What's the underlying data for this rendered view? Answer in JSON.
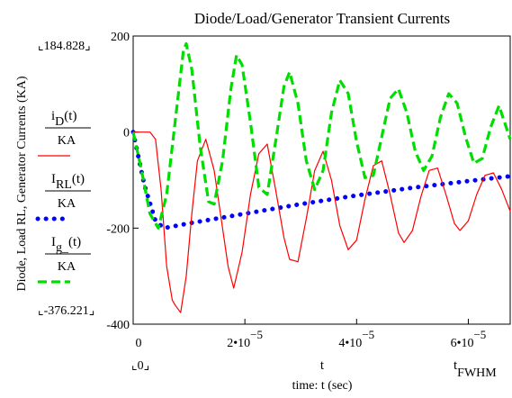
{
  "chart_data": {
    "type": "line",
    "title": "Diode/Load/Generator Transient Currents",
    "ylabel": "Diode, Load RL, Generator Currents (KA)",
    "xlabel": "time: t (sec)",
    "x_axis_marker": "t",
    "xlim": [
      0,
      6.75e-05
    ],
    "ylim": [
      -400,
      200
    ],
    "y_ticks": [
      {
        "value": 200,
        "label": "200"
      },
      {
        "value": 0,
        "label": "0"
      },
      {
        "value": -200,
        "label": "-200"
      },
      {
        "value": -400,
        "label": "-400"
      }
    ],
    "x_ticks": [
      {
        "value": 0,
        "mant": "0",
        "exp": ""
      },
      {
        "value": 2e-05,
        "mant": "2•10",
        "exp": "−5"
      },
      {
        "value": 4e-05,
        "mant": "4•10",
        "exp": "−5"
      },
      {
        "value": 6e-05,
        "mant": "6•10",
        "exp": "−5"
      }
    ],
    "range_labels": {
      "y_max": "184.828",
      "y_min": "-376.221",
      "x_min": "0",
      "x_max_base": "t",
      "x_max_sub": "FWHM"
    },
    "series": [
      {
        "key": "iD",
        "legend_top": "i",
        "legend_sub": "D",
        "legend_arg": "(t)",
        "legend_den": "KA",
        "color": "#ff0000",
        "style": "solid",
        "points": [
          [
            0,
            0
          ],
          [
            3e-06,
            0
          ],
          [
            4e-06,
            -15
          ],
          [
            5e-06,
            -120
          ],
          [
            6e-06,
            -280
          ],
          [
            7e-06,
            -350
          ],
          [
            7.5e-06,
            -360
          ],
          [
            8.5e-06,
            -376
          ],
          [
            9.5e-06,
            -300
          ],
          [
            1.05e-05,
            -170
          ],
          [
            1.15e-05,
            -60
          ],
          [
            1.3e-05,
            -15
          ],
          [
            1.45e-05,
            -80
          ],
          [
            1.6e-05,
            -200
          ],
          [
            1.7e-05,
            -280
          ],
          [
            1.8e-05,
            -325
          ],
          [
            1.95e-05,
            -250
          ],
          [
            2.1e-05,
            -130
          ],
          [
            2.25e-05,
            -45
          ],
          [
            2.4e-05,
            -25
          ],
          [
            2.55e-05,
            -120
          ],
          [
            2.7e-05,
            -220
          ],
          [
            2.8e-05,
            -265
          ],
          [
            2.95e-05,
            -270
          ],
          [
            3.1e-05,
            -180
          ],
          [
            3.25e-05,
            -80
          ],
          [
            3.4e-05,
            -40
          ],
          [
            3.55e-05,
            -100
          ],
          [
            3.7e-05,
            -195
          ],
          [
            3.85e-05,
            -245
          ],
          [
            4e-05,
            -225
          ],
          [
            4.15e-05,
            -140
          ],
          [
            4.3e-05,
            -70
          ],
          [
            4.45e-05,
            -60
          ],
          [
            4.6e-05,
            -130
          ],
          [
            4.75e-05,
            -210
          ],
          [
            4.85e-05,
            -230
          ],
          [
            5e-05,
            -205
          ],
          [
            5.15e-05,
            -135
          ],
          [
            5.3e-05,
            -80
          ],
          [
            5.45e-05,
            -75
          ],
          [
            5.6e-05,
            -130
          ],
          [
            5.75e-05,
            -190
          ],
          [
            5.85e-05,
            -205
          ],
          [
            6e-05,
            -185
          ],
          [
            6.15e-05,
            -130
          ],
          [
            6.3e-05,
            -90
          ],
          [
            6.45e-05,
            -85
          ],
          [
            6.6e-05,
            -120
          ],
          [
            6.75e-05,
            -165
          ]
        ]
      },
      {
        "key": "IRL",
        "legend_top": "I",
        "legend_sub": "RL",
        "legend_arg": "(t)",
        "legend_den": "KA",
        "color": "#0000ff",
        "style": "dotted",
        "points": [
          [
            0,
            0
          ],
          [
            2e-06,
            -110
          ],
          [
            4e-06,
            -185
          ],
          [
            5.5e-06,
            -200
          ],
          [
            1e-05,
            -190
          ],
          [
            2e-05,
            -170
          ],
          [
            3e-05,
            -150
          ],
          [
            4e-05,
            -132
          ],
          [
            5e-05,
            -116
          ],
          [
            6e-05,
            -102
          ],
          [
            6.75e-05,
            -92
          ]
        ]
      },
      {
        "key": "Ig",
        "legend_top": "I",
        "legend_sub": "g_",
        "legend_arg": "(t)",
        "legend_den": "KA",
        "color": "#00dd00",
        "style": "dashed",
        "points": [
          [
            0,
            0
          ],
          [
            1.5e-06,
            -80
          ],
          [
            3e-06,
            -170
          ],
          [
            4.5e-06,
            -200
          ],
          [
            6e-06,
            -130
          ],
          [
            7.5e-06,
            20
          ],
          [
            9e-06,
            170
          ],
          [
            9.5e-06,
            184
          ],
          [
            1.05e-05,
            130
          ],
          [
            1.2e-05,
            -30
          ],
          [
            1.35e-05,
            -145
          ],
          [
            1.45e-05,
            -150
          ],
          [
            1.6e-05,
            -60
          ],
          [
            1.75e-05,
            90
          ],
          [
            1.85e-05,
            160
          ],
          [
            1.95e-05,
            140
          ],
          [
            2.1e-05,
            20
          ],
          [
            2.25e-05,
            -115
          ],
          [
            2.4e-05,
            -130
          ],
          [
            2.55e-05,
            -20
          ],
          [
            2.7e-05,
            95
          ],
          [
            2.8e-05,
            125
          ],
          [
            2.95e-05,
            60
          ],
          [
            3.1e-05,
            -60
          ],
          [
            3.25e-05,
            -120
          ],
          [
            3.4e-05,
            -80
          ],
          [
            3.55e-05,
            40
          ],
          [
            3.7e-05,
            108
          ],
          [
            3.85e-05,
            80
          ],
          [
            4e-05,
            -20
          ],
          [
            4.15e-05,
            -95
          ],
          [
            4.3e-05,
            -90
          ],
          [
            4.45e-05,
            -10
          ],
          [
            4.6e-05,
            70
          ],
          [
            4.75e-05,
            90
          ],
          [
            4.9e-05,
            40
          ],
          [
            5.05e-05,
            -40
          ],
          [
            5.2e-05,
            -80
          ],
          [
            5.35e-05,
            -50
          ],
          [
            5.5e-05,
            30
          ],
          [
            5.65e-05,
            80
          ],
          [
            5.8e-05,
            60
          ],
          [
            5.95e-05,
            -10
          ],
          [
            6.1e-05,
            -65
          ],
          [
            6.25e-05,
            -55
          ],
          [
            6.4e-05,
            10
          ],
          [
            6.55e-05,
            55
          ],
          [
            6.75e-05,
            -15
          ]
        ]
      }
    ]
  }
}
